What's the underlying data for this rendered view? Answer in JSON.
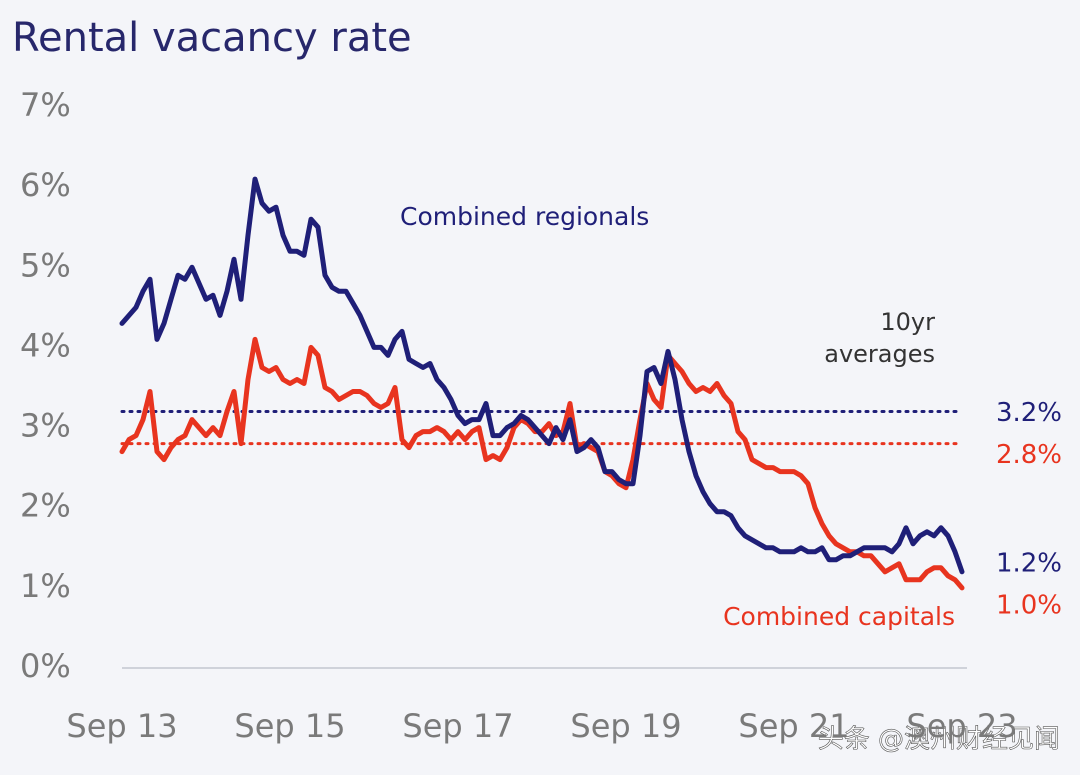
{
  "chart_data": {
    "type": "line",
    "title": "Rental vacancy rate",
    "categories": [
      "Sep 13",
      null,
      null,
      null,
      null,
      null,
      null,
      null,
      null,
      null,
      null,
      null,
      null,
      null,
      null,
      null,
      null,
      null,
      null,
      null,
      null,
      null,
      null,
      null,
      "Sep 15",
      null,
      null,
      null,
      null,
      null,
      null,
      null,
      null,
      null,
      null,
      null,
      null,
      null,
      null,
      null,
      null,
      null,
      null,
      null,
      null,
      null,
      null,
      null,
      "Sep 17",
      null,
      null,
      null,
      null,
      null,
      null,
      null,
      null,
      null,
      null,
      null,
      null,
      null,
      null,
      null,
      null,
      null,
      null,
      null,
      null,
      null,
      null,
      null,
      "Sep 19",
      null,
      null,
      null,
      null,
      null,
      null,
      null,
      null,
      null,
      null,
      null,
      null,
      null,
      null,
      null,
      null,
      null,
      null,
      null,
      null,
      null,
      null,
      null,
      "Sep 21",
      null,
      null,
      null,
      null,
      null,
      null,
      null,
      null,
      null,
      null,
      null,
      null,
      null,
      null,
      null,
      null,
      null,
      null,
      null,
      null,
      null,
      null,
      null,
      "Sep 23"
    ],
    "series": [
      {
        "name": "Combined regionals",
        "color": "#1f1f78",
        "values": [
          4.3,
          4.4,
          4.5,
          4.7,
          4.85,
          4.1,
          4.3,
          4.6,
          4.9,
          4.85,
          5.0,
          4.8,
          4.6,
          4.65,
          4.4,
          4.7,
          5.1,
          4.6,
          5.4,
          6.1,
          5.8,
          5.7,
          5.75,
          5.4,
          5.2,
          5.2,
          5.15,
          5.6,
          5.5,
          4.9,
          4.75,
          4.7,
          4.7,
          4.55,
          4.4,
          4.2,
          4.0,
          4.0,
          3.9,
          4.1,
          4.2,
          3.85,
          3.8,
          3.75,
          3.8,
          3.6,
          3.5,
          3.35,
          3.15,
          3.05,
          3.1,
          3.1,
          3.3,
          2.9,
          2.9,
          3.0,
          3.05,
          3.15,
          3.1,
          3.0,
          2.9,
          2.8,
          3.0,
          2.85,
          3.1,
          2.7,
          2.75,
          2.85,
          2.75,
          2.45,
          2.45,
          2.35,
          2.3,
          2.3,
          2.9,
          3.7,
          3.75,
          3.55,
          3.95,
          3.6,
          3.1,
          2.7,
          2.4,
          2.2,
          2.05,
          1.95,
          1.95,
          1.9,
          1.75,
          1.65,
          1.6,
          1.55,
          1.5,
          1.5,
          1.45,
          1.45,
          1.45,
          1.5,
          1.45,
          1.45,
          1.5,
          1.35,
          1.35,
          1.4,
          1.4,
          1.45,
          1.5,
          1.5,
          1.5,
          1.5,
          1.45,
          1.55,
          1.75,
          1.55,
          1.65,
          1.7,
          1.65,
          1.75,
          1.65,
          1.45,
          1.2
        ],
        "value_labels": [
          null,
          null,
          null,
          null,
          null,
          null,
          null,
          null,
          null,
          null,
          null,
          null,
          null,
          null,
          null,
          null,
          null,
          null,
          null,
          null,
          null,
          null,
          null,
          null,
          null,
          null,
          null,
          null,
          null,
          null,
          null,
          null,
          null,
          null,
          null,
          null,
          null,
          null,
          null,
          null,
          null,
          null,
          null,
          null,
          null,
          null,
          null,
          null,
          null,
          null,
          null,
          null,
          null,
          null,
          null,
          null,
          null,
          null,
          null,
          null,
          null,
          null,
          null,
          null,
          null,
          null,
          null,
          null,
          null,
          null,
          null,
          null,
          null,
          null,
          null,
          null,
          null,
          null,
          null,
          null,
          null,
          null,
          null,
          null,
          null,
          null,
          null,
          null,
          null,
          null,
          null,
          null,
          null,
          null,
          null,
          null,
          null,
          null,
          null,
          null,
          null,
          null,
          null,
          null,
          null,
          null,
          null,
          null,
          null,
          null,
          null,
          null,
          null,
          null,
          null,
          null,
          null,
          null,
          null,
          null,
          "1.2%"
        ]
      },
      {
        "name": "Combined capitals",
        "color": "#e8341f",
        "values": [
          2.7,
          2.85,
          2.9,
          3.1,
          3.45,
          2.7,
          2.6,
          2.75,
          2.85,
          2.9,
          3.1,
          3.0,
          2.9,
          3.0,
          2.9,
          3.2,
          3.45,
          2.8,
          3.6,
          4.1,
          3.75,
          3.7,
          3.75,
          3.6,
          3.55,
          3.6,
          3.55,
          4.0,
          3.9,
          3.5,
          3.45,
          3.35,
          3.4,
          3.45,
          3.45,
          3.4,
          3.3,
          3.25,
          3.3,
          3.5,
          2.85,
          2.75,
          2.9,
          2.95,
          2.95,
          3.0,
          2.95,
          2.85,
          2.95,
          2.85,
          2.95,
          3.0,
          2.6,
          2.65,
          2.6,
          2.75,
          3.0,
          3.1,
          3.05,
          2.95,
          2.95,
          3.05,
          2.9,
          2.95,
          3.3,
          2.75,
          2.8,
          2.75,
          2.7,
          2.45,
          2.4,
          2.3,
          2.25,
          2.6,
          3.1,
          3.55,
          3.35,
          3.25,
          3.9,
          3.8,
          3.7,
          3.55,
          3.45,
          3.5,
          3.45,
          3.55,
          3.4,
          3.3,
          2.95,
          2.85,
          2.6,
          2.55,
          2.5,
          2.5,
          2.45,
          2.45,
          2.45,
          2.4,
          2.3,
          2.0,
          1.8,
          1.65,
          1.55,
          1.5,
          1.45,
          1.45,
          1.4,
          1.4,
          1.3,
          1.2,
          1.25,
          1.3,
          1.1,
          1.1,
          1.1,
          1.2,
          1.25,
          1.25,
          1.15,
          1.1,
          1.0
        ],
        "value_labels": [
          null,
          null,
          null,
          null,
          null,
          null,
          null,
          null,
          null,
          null,
          null,
          null,
          null,
          null,
          null,
          null,
          null,
          null,
          null,
          null,
          null,
          null,
          null,
          null,
          null,
          null,
          null,
          null,
          null,
          null,
          null,
          null,
          null,
          null,
          null,
          null,
          null,
          null,
          null,
          null,
          null,
          null,
          null,
          null,
          null,
          null,
          null,
          null,
          null,
          null,
          null,
          null,
          null,
          null,
          null,
          null,
          null,
          null,
          null,
          null,
          null,
          null,
          null,
          null,
          null,
          null,
          null,
          null,
          null,
          null,
          null,
          null,
          null,
          null,
          null,
          null,
          null,
          null,
          null,
          null,
          null,
          null,
          null,
          null,
          null,
          null,
          null,
          null,
          null,
          null,
          null,
          null,
          null,
          null,
          null,
          null,
          null,
          null,
          null,
          null,
          null,
          null,
          null,
          null,
          null,
          null,
          null,
          null,
          null,
          null,
          null,
          null,
          null,
          null,
          null,
          null,
          null,
          null,
          null,
          null,
          "1.0%"
        ]
      }
    ],
    "reference_lines_title": [
      "10yr",
      "averages"
    ],
    "reference_lines": [
      {
        "value": 3.2,
        "label": "3.2%",
        "color": "#1f1f78"
      },
      {
        "value": 2.8,
        "label": "2.8%",
        "color": "#e8341f"
      }
    ],
    "ylim": [
      0,
      7
    ],
    "yticks": [
      {
        "value": 0,
        "label": "0%"
      },
      {
        "value": 1,
        "label": "1%"
      },
      {
        "value": 2,
        "label": "2%"
      },
      {
        "value": 3,
        "label": "3%"
      },
      {
        "value": 4,
        "label": "4%"
      },
      {
        "value": 5,
        "label": "5%"
      },
      {
        "value": 6,
        "label": "6%"
      },
      {
        "value": 7,
        "label": "7%"
      }
    ],
    "grid": false,
    "watermark": "头条 @澳州财经见闻"
  }
}
